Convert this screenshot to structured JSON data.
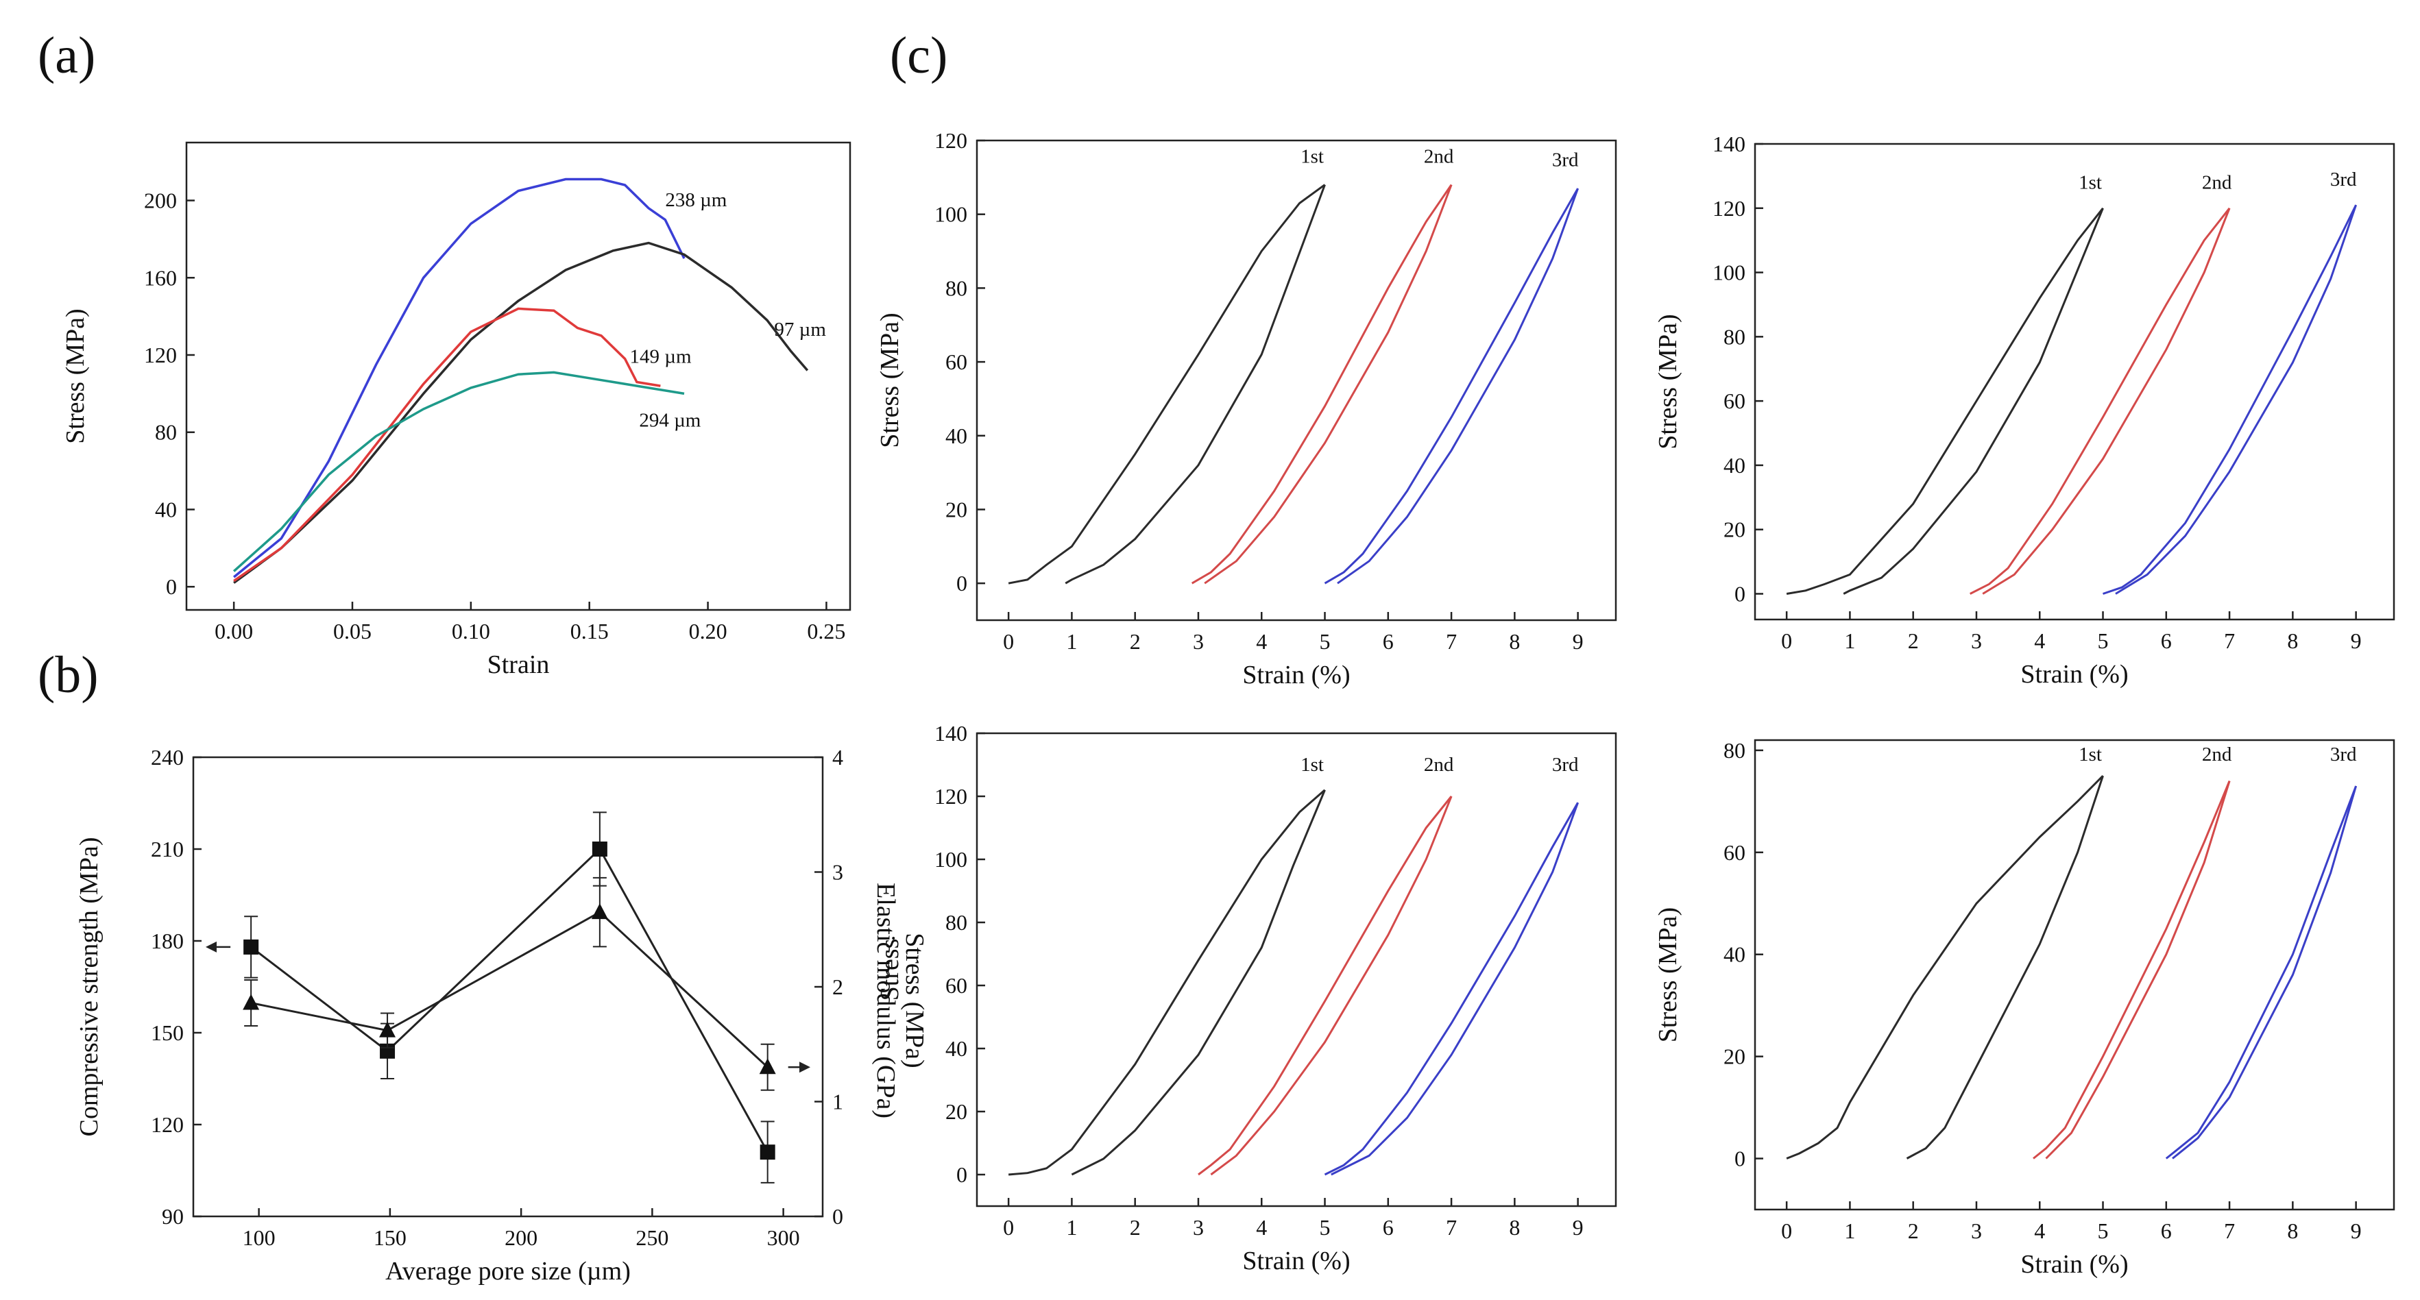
{
  "panel_labels": [
    "(a)",
    "(b)",
    "(c)"
  ],
  "chart_data": [
    {
      "id": "a",
      "type": "line",
      "xlabel": "Strain",
      "ylabel": "Stress (MPa)",
      "xlim": [
        -0.02,
        0.26
      ],
      "ylim": [
        -12,
        230
      ],
      "xticks": [
        0,
        0.05,
        0.1,
        0.15,
        0.2,
        0.25
      ],
      "xtick_labels": [
        "0.00",
        "0.05",
        "0.10",
        "0.15",
        "0.20",
        "0.25"
      ],
      "yticks": [
        0,
        40,
        80,
        120,
        160,
        200
      ],
      "series": [
        {
          "name": "238 µm",
          "color": "#3a3fd6",
          "label_at": [
            0.182,
            197
          ],
          "x": [
            0,
            0.02,
            0.04,
            0.06,
            0.08,
            0.1,
            0.12,
            0.14,
            0.155,
            0.165,
            0.175,
            0.182,
            0.19
          ],
          "y": [
            5,
            25,
            65,
            115,
            160,
            188,
            205,
            211,
            211,
            208,
            196,
            190,
            170
          ]
        },
        {
          "name": "97 µm",
          "color": "#2b2b2b",
          "label_at": [
            0.228,
            130
          ],
          "x": [
            0,
            0.02,
            0.05,
            0.08,
            0.1,
            0.12,
            0.14,
            0.16,
            0.175,
            0.19,
            0.21,
            0.225,
            0.235,
            0.242
          ],
          "y": [
            2,
            20,
            55,
            100,
            128,
            148,
            164,
            174,
            178,
            172,
            155,
            138,
            122,
            112
          ]
        },
        {
          "name": "149 µm",
          "color": "#e03a3a",
          "label_at": [
            0.167,
            116
          ],
          "x": [
            0,
            0.02,
            0.05,
            0.08,
            0.1,
            0.12,
            0.135,
            0.145,
            0.155,
            0.165,
            0.17,
            0.18
          ],
          "y": [
            3,
            20,
            58,
            105,
            132,
            144,
            143,
            134,
            130,
            118,
            106,
            104
          ]
        },
        {
          "name": "294 µm",
          "color": "#1e9a8a",
          "label_at": [
            0.171,
            83
          ],
          "x": [
            0,
            0.02,
            0.04,
            0.06,
            0.08,
            0.1,
            0.12,
            0.135,
            0.15,
            0.17,
            0.19
          ],
          "y": [
            8,
            30,
            58,
            78,
            92,
            103,
            110,
            111,
            108,
            104,
            100
          ]
        }
      ]
    },
    {
      "id": "b",
      "type": "line",
      "xlabel": "Average pore size (µm)",
      "ylabel": "Compressive strength (MPa)",
      "ylabel_right": [
        "Elastic modulus (GPa)",
        "Stress (MPa)"
      ],
      "xlim": [
        75,
        315
      ],
      "ylim": [
        90,
        240
      ],
      "ylim_right": [
        0,
        4
      ],
      "xticks": [
        100,
        150,
        200,
        250,
        300
      ],
      "yticks": [
        90,
        120,
        150,
        180,
        210,
        240
      ],
      "yticks_right": [
        0,
        1,
        2,
        3,
        4
      ],
      "series": [
        {
          "name": "Compressive strength",
          "marker": "square",
          "axis": "left",
          "x": [
            97,
            149,
            230,
            294
          ],
          "y": [
            178,
            144,
            210,
            111
          ],
          "err": [
            10,
            9,
            12,
            10
          ]
        },
        {
          "name": "Elastic modulus",
          "marker": "triangle",
          "axis": "right",
          "x": [
            97,
            149,
            230,
            294
          ],
          "y": [
            1.86,
            1.62,
            2.65,
            1.3
          ],
          "err": [
            0.2,
            0.15,
            0.3,
            0.2
          ]
        }
      ]
    },
    {
      "id": "c1",
      "type": "line",
      "xlabel": "Strain (%)",
      "ylabel": "Stress (MPa)",
      "xlim": [
        -0.5,
        9.6
      ],
      "ylim": [
        -10,
        120
      ],
      "xticks": [
        0,
        1,
        2,
        3,
        4,
        5,
        6,
        7,
        8,
        9
      ],
      "yticks": [
        0,
        20,
        40,
        60,
        80,
        100,
        120
      ],
      "cycles": [
        {
          "name": "1st",
          "color": "#2b2b2b",
          "peak": [
            5,
            108
          ],
          "label_at": [
            4.8,
            114
          ],
          "load_x": [
            0,
            0.3,
            0.6,
            1.0,
            2.0,
            3.0,
            4.0,
            4.6,
            5.0
          ],
          "load_y": [
            0,
            1,
            5,
            10,
            35,
            62,
            90,
            103,
            108
          ],
          "unload_x": [
            5.0,
            4.5,
            4.0,
            3.0,
            2.0,
            1.5,
            1.0,
            0.9
          ],
          "unload_y": [
            108,
            85,
            62,
            32,
            12,
            5,
            1,
            0
          ]
        },
        {
          "name": "2nd",
          "color": "#d44a4a",
          "peak": [
            7,
            108
          ],
          "label_at": [
            6.8,
            114
          ],
          "load_x": [
            2.9,
            3.2,
            3.5,
            4.2,
            5.0,
            6.0,
            6.6,
            7.0
          ],
          "load_y": [
            0,
            3,
            8,
            25,
            48,
            80,
            98,
            108
          ],
          "unload_x": [
            7.0,
            6.6,
            6.0,
            5.0,
            4.2,
            3.6,
            3.1
          ],
          "unload_y": [
            108,
            90,
            68,
            38,
            18,
            6,
            0
          ]
        },
        {
          "name": "3rd",
          "color": "#3a3fc8",
          "peak": [
            9,
            107
          ],
          "label_at": [
            8.8,
            113
          ],
          "load_x": [
            5.0,
            5.3,
            5.6,
            6.3,
            7.0,
            8.0,
            8.6,
            9.0
          ],
          "load_y": [
            0,
            3,
            8,
            25,
            45,
            76,
            95,
            107
          ],
          "unload_x": [
            9.0,
            8.6,
            8.0,
            7.0,
            6.3,
            5.7,
            5.2
          ],
          "unload_y": [
            107,
            88,
            66,
            36,
            18,
            6,
            0
          ]
        }
      ]
    },
    {
      "id": "c2",
      "type": "line",
      "xlabel": "Strain (%)",
      "ylabel": "Stress (MPa)",
      "xlim": [
        -0.5,
        9.6
      ],
      "ylim": [
        -8,
        140
      ],
      "xticks": [
        0,
        1,
        2,
        3,
        4,
        5,
        6,
        7,
        8,
        9
      ],
      "yticks": [
        0,
        20,
        40,
        60,
        80,
        100,
        120,
        140
      ],
      "cycles": [
        {
          "name": "1st",
          "color": "#2b2b2b",
          "peak": [
            5,
            120
          ],
          "label_at": [
            4.8,
            126
          ],
          "load_x": [
            0,
            0.3,
            0.6,
            1.0,
            2.0,
            3.0,
            4.0,
            4.6,
            5.0
          ],
          "load_y": [
            0,
            1,
            3,
            6,
            28,
            60,
            92,
            110,
            120
          ],
          "unload_x": [
            5.0,
            4.5,
            4.0,
            3.0,
            2.0,
            1.5,
            1.0,
            0.9
          ],
          "unload_y": [
            120,
            96,
            72,
            38,
            14,
            5,
            1,
            0
          ]
        },
        {
          "name": "2nd",
          "color": "#d44a4a",
          "peak": [
            7,
            120
          ],
          "label_at": [
            6.8,
            126
          ],
          "load_x": [
            2.9,
            3.2,
            3.5,
            4.2,
            5.0,
            6.0,
            6.6,
            7.0
          ],
          "load_y": [
            0,
            3,
            8,
            28,
            55,
            90,
            110,
            120
          ],
          "unload_x": [
            7.0,
            6.6,
            6.0,
            5.0,
            4.2,
            3.6,
            3.1
          ],
          "unload_y": [
            120,
            100,
            76,
            42,
            20,
            6,
            0
          ]
        },
        {
          "name": "3rd",
          "color": "#3a3fc8",
          "peak": [
            9,
            121
          ],
          "label_at": [
            8.8,
            127
          ],
          "load_x": [
            5.0,
            5.3,
            5.6,
            6.3,
            7.0,
            8.0,
            8.6,
            9.0
          ],
          "load_y": [
            0,
            2,
            6,
            22,
            45,
            82,
            105,
            121
          ],
          "unload_x": [
            9.0,
            8.6,
            8.0,
            7.0,
            6.3,
            5.7,
            5.2
          ],
          "unload_y": [
            121,
            98,
            72,
            38,
            18,
            6,
            0
          ]
        }
      ]
    },
    {
      "id": "c3",
      "type": "line",
      "xlabel": "Strain (%)",
      "ylabel": "Stress",
      "xlim": [
        -0.5,
        9.6
      ],
      "ylim": [
        -10,
        140
      ],
      "xticks": [
        0,
        1,
        2,
        3,
        4,
        5,
        6,
        7,
        8,
        9
      ],
      "yticks": [
        0,
        20,
        40,
        60,
        80,
        100,
        120,
        140
      ],
      "cycles": [
        {
          "name": "1st",
          "color": "#2b2b2b",
          "peak": [
            5,
            122
          ],
          "label_at": [
            4.8,
            128
          ],
          "load_x": [
            0,
            0.3,
            0.6,
            1.0,
            2.0,
            3.0,
            4.0,
            4.6,
            5.0
          ],
          "load_y": [
            0,
            0.5,
            2,
            8,
            35,
            68,
            100,
            115,
            122
          ],
          "unload_x": [
            5.0,
            4.5,
            4.0,
            3.0,
            2.0,
            1.5,
            1.0
          ],
          "unload_y": [
            122,
            98,
            72,
            38,
            14,
            5,
            0
          ]
        },
        {
          "name": "2nd",
          "color": "#d44a4a",
          "peak": [
            7,
            120
          ],
          "label_at": [
            6.8,
            128
          ],
          "load_x": [
            3.0,
            3.2,
            3.5,
            4.2,
            5.0,
            6.0,
            6.6,
            7.0
          ],
          "load_y": [
            0,
            3,
            8,
            28,
            55,
            90,
            110,
            120
          ],
          "unload_x": [
            7.0,
            6.6,
            6.0,
            5.0,
            4.2,
            3.6,
            3.2
          ],
          "unload_y": [
            120,
            100,
            76,
            42,
            20,
            6,
            0
          ]
        },
        {
          "name": "3rd",
          "color": "#3a3fc8",
          "peak": [
            9,
            118
          ],
          "label_at": [
            8.8,
            128
          ],
          "load_x": [
            5.0,
            5.3,
            5.6,
            6.3,
            7.0,
            8.0,
            8.6,
            9.0
          ],
          "load_y": [
            0,
            3,
            8,
            26,
            48,
            82,
            104,
            118
          ],
          "unload_x": [
            9.0,
            8.6,
            8.0,
            7.0,
            6.3,
            5.7,
            5.1
          ],
          "unload_y": [
            118,
            96,
            72,
            38,
            18,
            6,
            0
          ]
        }
      ]
    },
    {
      "id": "c4",
      "type": "line",
      "xlabel": "Strain (%)",
      "ylabel": "Stress (MPa)",
      "xlim": [
        -0.5,
        9.6
      ],
      "ylim": [
        -10,
        82
      ],
      "xticks": [
        0,
        1,
        2,
        3,
        4,
        5,
        6,
        7,
        8,
        9
      ],
      "yticks": [
        0,
        20,
        40,
        60,
        80
      ],
      "cycles": [
        {
          "name": "1st",
          "color": "#2b2b2b",
          "peak": [
            5,
            75
          ],
          "label_at": [
            4.8,
            78
          ],
          "load_x": [
            0,
            0.2,
            0.5,
            0.8,
            1.0,
            2.0,
            3.0,
            4.0,
            4.6,
            5.0
          ],
          "load_y": [
            0,
            1,
            3,
            6,
            11,
            32,
            50,
            63,
            70,
            75
          ],
          "unload_x": [
            5.0,
            4.6,
            4.0,
            3.0,
            2.5,
            2.2,
            1.9
          ],
          "unload_y": [
            75,
            60,
            42,
            18,
            6,
            2,
            0
          ]
        },
        {
          "name": "2nd",
          "color": "#d44a4a",
          "peak": [
            7,
            74
          ],
          "label_at": [
            6.8,
            78
          ],
          "load_x": [
            3.9,
            4.1,
            4.4,
            5.0,
            6.0,
            6.6,
            7.0
          ],
          "load_y": [
            0,
            2,
            6,
            20,
            45,
            62,
            74
          ],
          "unload_x": [
            7.0,
            6.6,
            6.0,
            5.0,
            4.5,
            4.1
          ],
          "unload_y": [
            74,
            58,
            40,
            16,
            5,
            0
          ]
        },
        {
          "name": "3rd",
          "color": "#3a3fc8",
          "peak": [
            9,
            73
          ],
          "label_at": [
            8.8,
            78
          ],
          "load_x": [
            6.0,
            6.2,
            6.5,
            7.0,
            8.0,
            8.6,
            9.0
          ],
          "load_y": [
            0,
            2,
            5,
            15,
            40,
            60,
            73
          ],
          "unload_x": [
            9.0,
            8.6,
            8.0,
            7.0,
            6.5,
            6.1
          ],
          "unload_y": [
            73,
            56,
            36,
            12,
            4,
            0
          ]
        }
      ]
    }
  ]
}
